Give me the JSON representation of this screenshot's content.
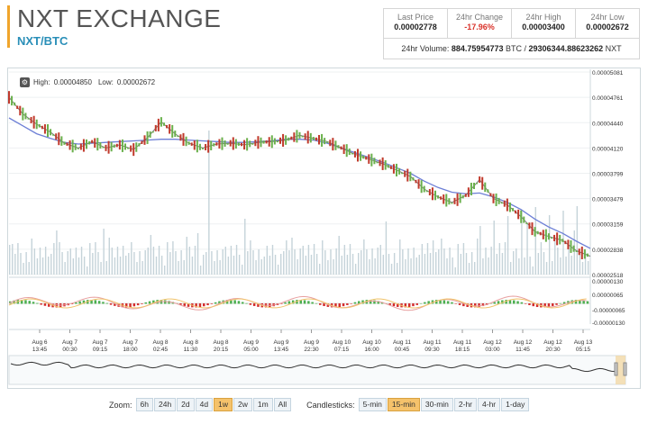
{
  "header": {
    "title": "NXT EXCHANGE",
    "pair": "NXT/BTC"
  },
  "stats": [
    {
      "label": "Last Price",
      "value": "0.00002778",
      "negative": false
    },
    {
      "label": "24hr Change",
      "value": "-17.96%",
      "negative": true
    },
    {
      "label": "24hr High",
      "value": "0.00003400",
      "negative": false
    },
    {
      "label": "24hr Low",
      "value": "0.00002672",
      "negative": false
    }
  ],
  "volume": {
    "label": "24hr Volume:",
    "btc": "884.75954773",
    "btc_unit": "BTC",
    "sep": "/",
    "nxt": "29306344.88623262",
    "nxt_unit": "NXT"
  },
  "chart": {
    "high_label": "High:",
    "high_value": "0.00004850",
    "low_label": "Low:",
    "low_value": "0.00002672",
    "icon": "gear-icon"
  },
  "chart_data": {
    "type": "line",
    "price_ticks": [
      "0.00005081",
      "0.00004761",
      "0.00004440",
      "0.00004120",
      "0.00003799",
      "0.00003479",
      "0.00003159",
      "0.00002838",
      "0.00002518"
    ],
    "macd_ticks": [
      "0.00000130",
      "0.00000065",
      "-0.00000065",
      "-0.00000130"
    ],
    "x_ticks": [
      {
        "d": "Aug 6",
        "t": "13:45"
      },
      {
        "d": "Aug 7",
        "t": "00:30"
      },
      {
        "d": "Aug 7",
        "t": "09:15"
      },
      {
        "d": "Aug 7",
        "t": "18:00"
      },
      {
        "d": "Aug 8",
        "t": "02:45"
      },
      {
        "d": "Aug 8",
        "t": "11:30"
      },
      {
        "d": "Aug 8",
        "t": "20:15"
      },
      {
        "d": "Aug 9",
        "t": "05:00"
      },
      {
        "d": "Aug 9",
        "t": "13:45"
      },
      {
        "d": "Aug 9",
        "t": "22:30"
      },
      {
        "d": "Aug 10",
        "t": "07:15"
      },
      {
        "d": "Aug 10",
        "t": "16:00"
      },
      {
        "d": "Aug 11",
        "t": "00:45"
      },
      {
        "d": "Aug 11",
        "t": "09:30"
      },
      {
        "d": "Aug 11",
        "t": "18:15"
      },
      {
        "d": "Aug 12",
        "t": "03:00"
      },
      {
        "d": "Aug 12",
        "t": "11:45"
      },
      {
        "d": "Aug 12",
        "t": "20:30"
      },
      {
        "d": "Aug 13",
        "t": "05:15"
      }
    ],
    "price": [
      4.76e-05,
      4.55e-05,
      4.42e-05,
      4.32e-05,
      4.18e-05,
      4.12e-05,
      4.2e-05,
      4.12e-05,
      4.16e-05,
      4.1e-05,
      4.25e-05,
      4.45e-05,
      4.3e-05,
      4.18e-05,
      4.12e-05,
      4.17e-05,
      4.18e-05,
      4.16e-05,
      4.19e-05,
      4.2e-05,
      4.22e-05,
      4.28e-05,
      4.24e-05,
      4.2e-05,
      4.12e-05,
      4.04e-05,
      3.98e-05,
      3.92e-05,
      3.84e-05,
      3.76e-05,
      3.6e-05,
      3.5e-05,
      3.43e-05,
      3.52e-05,
      3.72e-05,
      3.48e-05,
      3.4e-05,
      3.25e-05,
      3.06e-05,
      3e-05,
      2.95e-05,
      2.82e-05,
      2.75e-05
    ],
    "ma": [
      4.5e-05,
      4.4e-05,
      4.3e-05,
      4.24e-05,
      4.19e-05,
      4.17e-05,
      4.18e-05,
      4.19e-05,
      4.2e-05,
      4.21e-05,
      4.22e-05,
      4.23e-05,
      4.23e-05,
      4.22e-05,
      4.21e-05,
      4.2e-05,
      4.19e-05,
      4.19e-05,
      4.2e-05,
      4.21e-05,
      4.23e-05,
      4.23e-05,
      4.22e-05,
      4.18e-05,
      4.12e-05,
      4.06e-05,
      4e-05,
      3.94e-05,
      3.87e-05,
      3.8e-05,
      3.7e-05,
      3.62e-05,
      3.56e-05,
      3.54e-05,
      3.55e-05,
      3.5e-05,
      3.43e-05,
      3.34e-05,
      3.22e-05,
      3.12e-05,
      3.04e-05,
      2.94e-05,
      2.85e-05
    ]
  },
  "controls": {
    "zoom_label": "Zoom:",
    "zoom": [
      {
        "label": "6h",
        "active": false
      },
      {
        "label": "24h",
        "active": false
      },
      {
        "label": "2d",
        "active": false
      },
      {
        "label": "4d",
        "active": false
      },
      {
        "label": "1w",
        "active": true
      },
      {
        "label": "2w",
        "active": false
      },
      {
        "label": "1m",
        "active": false
      },
      {
        "label": "All",
        "active": false
      }
    ],
    "candles_label": "Candlesticks:",
    "candles": [
      {
        "label": "5-min",
        "active": false
      },
      {
        "label": "15-min",
        "active": true
      },
      {
        "label": "30-min",
        "active": false
      },
      {
        "label": "2-hr",
        "active": false
      },
      {
        "label": "4-hr",
        "active": false
      },
      {
        "label": "1-day",
        "active": false
      }
    ]
  }
}
